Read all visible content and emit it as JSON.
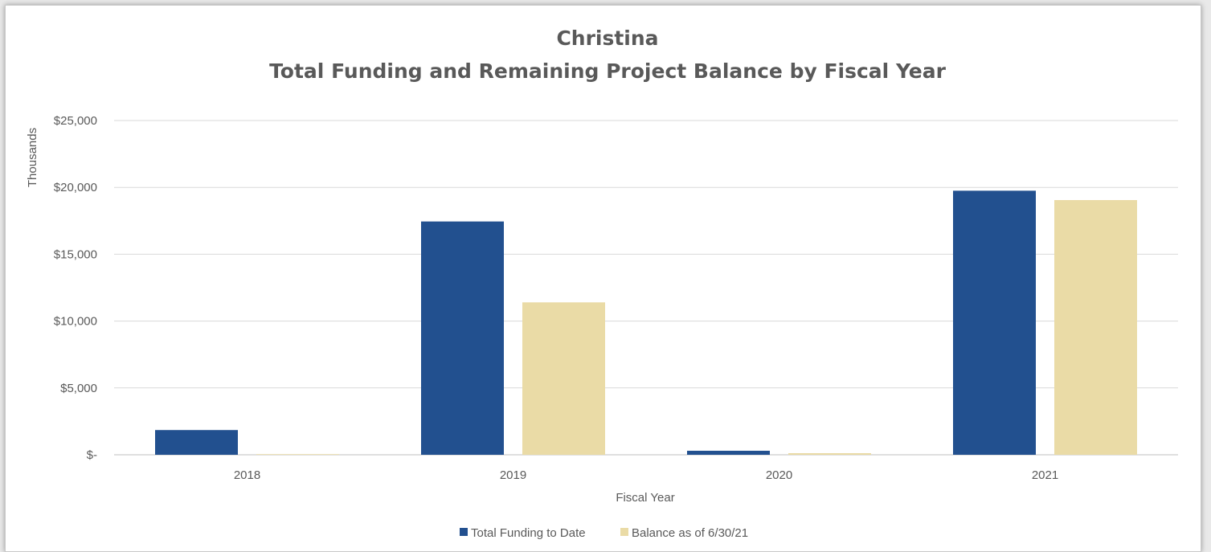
{
  "chart_data": {
    "type": "bar",
    "title": "Christina",
    "subtitle": "Total Funding and Remaining Project Balance by Fiscal Year",
    "xlabel": "Fiscal Year",
    "ylabel": "Thousands",
    "categories": [
      "2018",
      "2019",
      "2020",
      "2021"
    ],
    "series": [
      {
        "name": "Total Funding to Date",
        "color": "#22508f",
        "values": [
          1850,
          17450,
          300,
          19750
        ]
      },
      {
        "name": "Balance as of 6/30/21",
        "color": "#eadba6",
        "values": [
          20,
          11400,
          120,
          19050
        ]
      }
    ],
    "ylim": [
      0,
      25000
    ],
    "yticks": [
      0,
      5000,
      10000,
      15000,
      20000,
      25000
    ],
    "ytick_labels": [
      "$-",
      "$5,000",
      "$10,000",
      "$15,000",
      "$20,000",
      "$25,000"
    ],
    "grid": true,
    "legend": "bottom"
  }
}
